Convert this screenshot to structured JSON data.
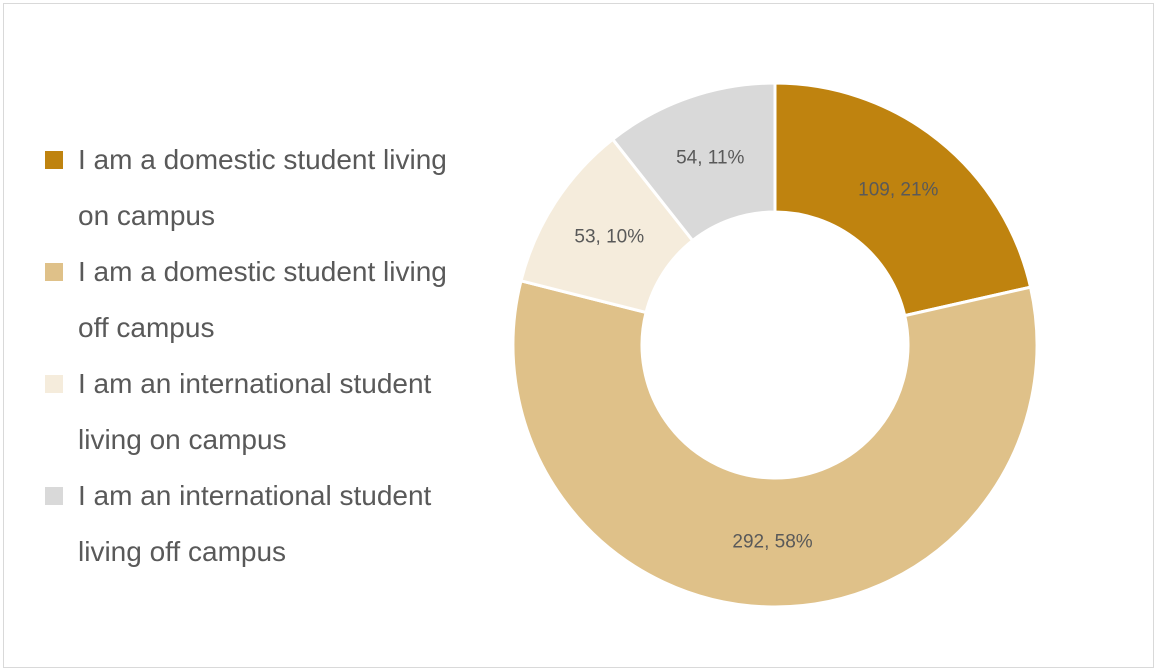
{
  "chart_data": {
    "type": "donut",
    "categories": [
      "I am a domestic student living on campus",
      "I am a domestic student living off campus",
      "I am an international student living on campus",
      "I am an international student living off campus"
    ],
    "values": [
      109,
      292,
      53,
      54
    ],
    "value_labels": [
      "109, 21%",
      "292, 58%",
      "53, 10%",
      "54, 11%"
    ],
    "colors": [
      "#bf830f",
      "#dfc189",
      "#f5ecdc",
      "#d9d9d9"
    ],
    "legend": "left"
  }
}
